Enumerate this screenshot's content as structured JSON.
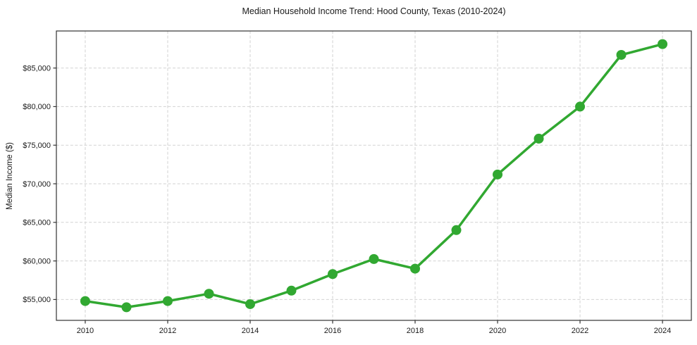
{
  "figure": {
    "title": "Median Household Income Trend: Hood County, Texas (2010-2024)"
  },
  "chart_data": {
    "type": "line",
    "title": "Median Household Income Trend: Hood County, Texas (2010-2024)",
    "xlabel": "",
    "ylabel": "Median Income ($)",
    "x": [
      2010,
      2011,
      2012,
      2013,
      2014,
      2015,
      2016,
      2017,
      2018,
      2019,
      2020,
      2021,
      2022,
      2023,
      2024
    ],
    "series": [
      {
        "name": "Median Household Income",
        "values": [
          54800,
          54000,
          54800,
          55750,
          54400,
          56150,
          58300,
          60250,
          59000,
          64000,
          71200,
          75850,
          80000,
          86700,
          88100
        ]
      }
    ],
    "xticks": [
      2010,
      2012,
      2014,
      2016,
      2018,
      2020,
      2022,
      2024
    ],
    "xtick_labels": [
      "2010",
      "2012",
      "2014",
      "2016",
      "2018",
      "2020",
      "2022",
      "2024"
    ],
    "yticks": [
      55000,
      60000,
      65000,
      70000,
      75000,
      80000,
      85000
    ],
    "ytick_labels": [
      "$55,000",
      "$60,000",
      "$65,000",
      "$70,000",
      "$75,000",
      "$80,000",
      "$85,000"
    ],
    "xlim": [
      2009.3,
      2024.7
    ],
    "ylim": [
      52300,
      89800
    ],
    "grid": true,
    "grid_style": "dashed",
    "legend": false,
    "line_color": "#31a831",
    "marker": "circle",
    "marker_radius": 7,
    "line_width": 3.5,
    "background_color": "#ffffff"
  }
}
